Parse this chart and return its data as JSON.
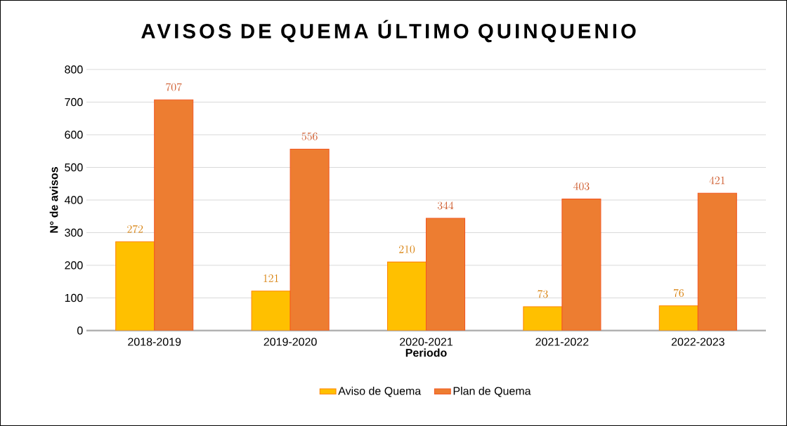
{
  "chart_data": {
    "type": "bar",
    "title": "AVISOS DE QUEMA ÚLTIMO QUINQUENIO",
    "xlabel": "Periodo",
    "ylabel": "N° de avisos",
    "categories": [
      "2018-2019",
      "2019-2020",
      "2020-2021",
      "2021-2022",
      "2022-2023"
    ],
    "series": [
      {
        "name": "Aviso de Quema",
        "color": "#ffc000",
        "values": [
          272,
          121,
          210,
          73,
          76
        ]
      },
      {
        "name": "Plan de Quema",
        "color": "#ed7d31",
        "values": [
          707,
          556,
          344,
          403,
          421
        ]
      }
    ],
    "ylim": [
      0,
      800
    ],
    "yticks": [
      0,
      100,
      200,
      300,
      400,
      500,
      600,
      700,
      800
    ],
    "grid": "y",
    "legend": "bottom",
    "data_labels": true
  }
}
